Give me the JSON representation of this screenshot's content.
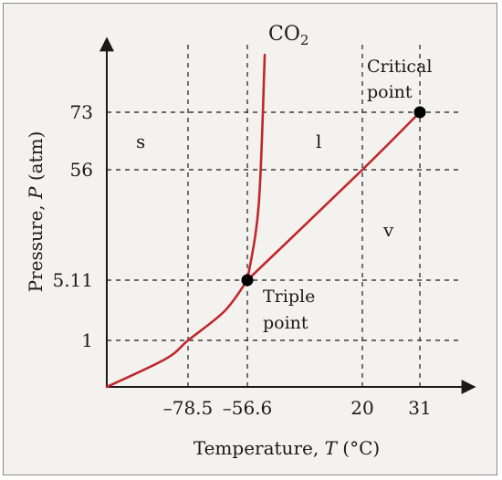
{
  "chart_data": {
    "type": "line",
    "xlabel_prefix": "Temperature, ",
    "xlabel_var": "T",
    "xlabel_unit": " (°C)",
    "ylabel_prefix": "Pressure, ",
    "ylabel_var": "P",
    "ylabel_unit": " (atm)",
    "x_ticks": [
      "–78.5",
      "–56.6",
      "20",
      "31"
    ],
    "y_ticks": [
      "73",
      "56",
      "5.11",
      "1"
    ],
    "grid": "dashed",
    "axes": "arrowed",
    "axis_scale": "not to scale",
    "series": [
      {
        "name": "sublimation curve",
        "points": [
          {
            "x": -120,
            "y": 0
          },
          {
            "x": -90,
            "y": 0.6
          },
          {
            "x": -78.5,
            "y": 1
          },
          {
            "x": -65,
            "y": 3
          },
          {
            "x": -56.6,
            "y": 5.11
          }
        ]
      },
      {
        "name": "melting curve",
        "points": [
          {
            "x": -56.6,
            "y": 5.11
          },
          {
            "x": -49,
            "y": 40
          },
          {
            "x": -45,
            "y": 90
          }
        ]
      },
      {
        "name": "vaporization curve",
        "points": [
          {
            "x": -56.6,
            "y": 5.11
          },
          {
            "x": 20,
            "y": 56
          },
          {
            "x": 31,
            "y": 73
          }
        ]
      }
    ],
    "special_points": [
      {
        "name": "triple-point",
        "x": -56.6,
        "y": 5.11
      },
      {
        "name": "critical-point",
        "x": 31,
        "y": 73
      }
    ],
    "annotations": {
      "substance": "CO",
      "substance_subscript": "2",
      "critical_line1": "Critical",
      "critical_line2": "point",
      "triple_line1": "Triple",
      "triple_line2": "point",
      "region_solid": "s",
      "region_liquid": "l",
      "region_vapor": "v"
    }
  },
  "colors": {
    "curve": "#c0272d",
    "axis": "#1a1a1a",
    "grid": "#1a1a1a",
    "background": "#f4f2ee",
    "frame": "#8a8a8a"
  }
}
